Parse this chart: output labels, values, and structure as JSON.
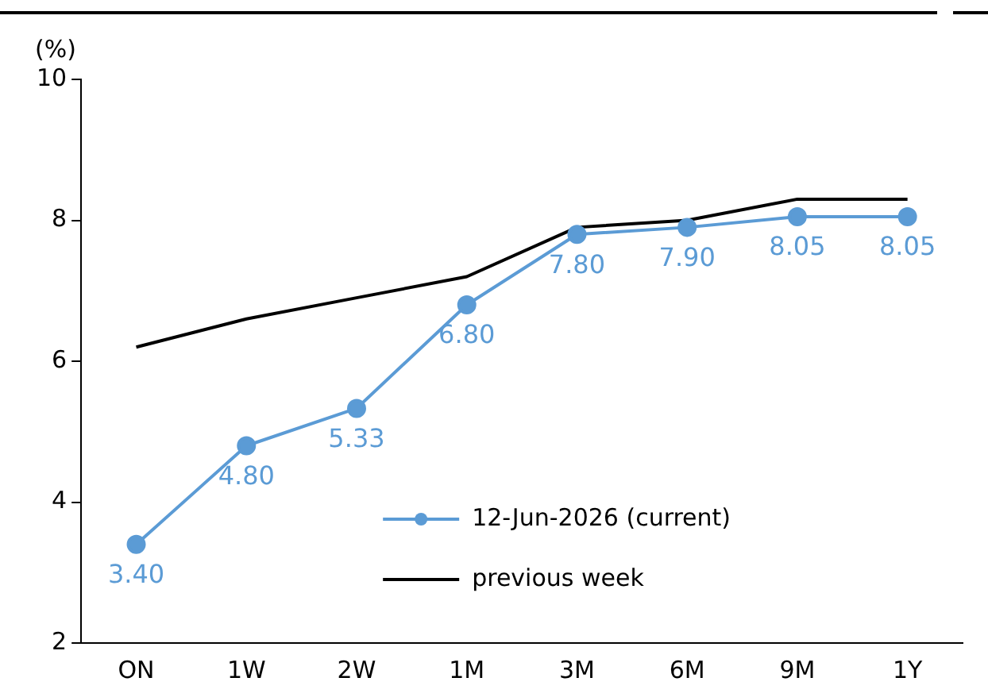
{
  "chart_data": {
    "type": "line",
    "ylabel": "(%)",
    "categories": [
      "ON",
      "1W",
      "2W",
      "1M",
      "3M",
      "6M",
      "9M",
      "1Y"
    ],
    "series": [
      {
        "name": "12-Jun-2026 (current)",
        "color": "#5b9bd5",
        "marker": "circle",
        "values": [
          3.4,
          4.8,
          5.33,
          6.8,
          7.8,
          7.9,
          8.05,
          8.05
        ],
        "value_labels": [
          "3.40",
          "4.80",
          "5.33",
          "6.80",
          "7.80",
          "7.90",
          "8.05",
          "8.05"
        ]
      },
      {
        "name": "previous week",
        "color": "#000000",
        "marker": "none",
        "values": [
          6.2,
          6.6,
          6.9,
          7.2,
          7.9,
          8.0,
          8.3,
          8.3
        ]
      }
    ],
    "ylim": [
      2,
      10
    ],
    "yticks": [
      2,
      4,
      6,
      8,
      10
    ],
    "grid": false,
    "legend": "bottom right",
    "line_style": "solid"
  }
}
